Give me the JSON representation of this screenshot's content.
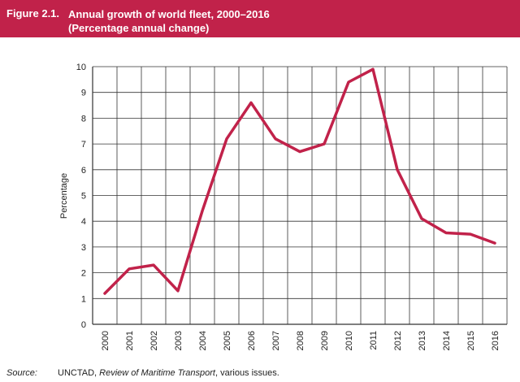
{
  "header": {
    "figure_number": "Figure 2.1.",
    "title": "Annual growth of world fleet, 2000–2016",
    "subtitle": "(Percentage annual change)"
  },
  "source": {
    "label": "Source:",
    "prefix": "UNCTAD, ",
    "publication": "Review of Maritime Transport",
    "suffix": ", various issues."
  },
  "colors": {
    "header_bg": "#c1224a",
    "line": "#c1224a",
    "grid": "#333333"
  },
  "chart_data": {
    "type": "line",
    "title": "Annual growth of world fleet, 2000–2016",
    "subtitle": "(Percentage annual change)",
    "xlabel": "",
    "ylabel": "Percentage",
    "ylim": [
      0,
      10
    ],
    "yticks": [
      "0",
      "1",
      "2",
      "3",
      "4",
      "5",
      "6",
      "7",
      "8",
      "9",
      "10"
    ],
    "grid": true,
    "legend": "none",
    "categories": [
      "2000",
      "2001",
      "2002",
      "2003",
      "2004",
      "2005",
      "2006",
      "2007",
      "2008",
      "2009",
      "2010",
      "2011",
      "2012",
      "2013",
      "2014",
      "2015",
      "2016"
    ],
    "series": [
      {
        "values": [
          1.2,
          2.15,
          2.3,
          1.3,
          4.4,
          7.2,
          8.6,
          7.2,
          6.7,
          7.0,
          9.4,
          9.9,
          6.0,
          4.1,
          3.55,
          3.5,
          3.15
        ]
      }
    ]
  }
}
